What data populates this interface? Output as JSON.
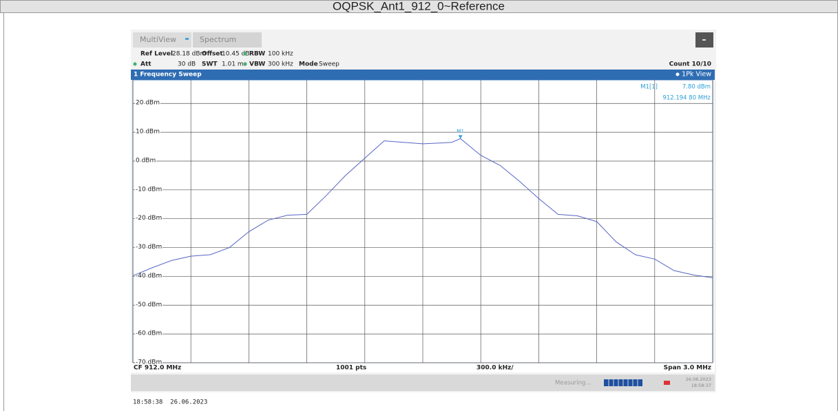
{
  "window_title": "OQPSK_Ant1_912_0~Reference",
  "tabs": [
    "MultiView",
    "Spectrum"
  ],
  "settings_row1": [
    {
      "label": "Ref Level",
      "value": "28.18 dBm"
    },
    {
      "label": "Offset",
      "value": "10.45 dB"
    },
    {
      "label": "RBW",
      "value": "100 kHz"
    }
  ],
  "settings_row2": [
    {
      "label": "Att",
      "value": "30 dB"
    },
    {
      "label": "SWT",
      "value": "1.01 ms"
    },
    {
      "label": "VBW",
      "value": "300 kHz"
    },
    {
      "label": "Mode",
      "value": "Sweep"
    }
  ],
  "count": "Count 10/10",
  "panel_title": "1 Frequency Sweep",
  "footer": {
    "center_freq": "CF 912.0 MHz",
    "points": "1001 pts",
    "per_division": "300.0 kHz/",
    "span": "Span 3.0 MHz"
  },
  "status": {
    "state": "Measuring...",
    "date": "26.06.2023",
    "time": "18:58:37"
  },
  "timestamp": "18:58:38  26.06.2023",
  "chart_data": {
    "type": "line",
    "x": [
      910.5,
      910.6,
      910.7,
      910.8,
      910.9,
      911.0,
      911.1,
      911.2,
      911.3,
      911.4,
      911.5,
      911.6,
      911.7,
      911.8,
      911.9,
      912.0,
      912.1,
      912.15,
      912.1948,
      912.3,
      912.4,
      912.5,
      912.6,
      912.7,
      912.8,
      912.9,
      913.0,
      913.1,
      913.2,
      913.3,
      913.4,
      913.5
    ],
    "series": [
      {
        "name": "1Pk View",
        "color": "#5564c4",
        "values": [
          -39.8,
          -37.0,
          -34.5,
          -33.0,
          -32.5,
          -30.0,
          -24.5,
          -20.5,
          -18.8,
          -18.5,
          -12.0,
          -5.0,
          1.0,
          7.0,
          6.5,
          6.0,
          6.3,
          6.5,
          7.8,
          2.0,
          -1.5,
          -7.0,
          -13.0,
          -18.5,
          -19.0,
          -21.0,
          -28.0,
          -32.5,
          -34.0,
          -38.0,
          -39.5,
          -40.5
        ]
      }
    ],
    "marker": {
      "label": "M1",
      "name": "M1[1]",
      "x": 912.1948,
      "y": 7.8,
      "value_label": "7.80 dBm",
      "x_label": "912.194 80 MHz"
    },
    "xlim": [
      910.5,
      913.5
    ],
    "xticks": [
      910.5,
      910.8,
      911.1,
      911.4,
      911.7,
      912.0,
      912.3,
      912.6,
      912.9,
      913.2,
      913.5
    ],
    "ylim": [
      -70,
      28.18
    ],
    "yticks": [
      {
        "value": 20,
        "label": "20 dBm"
      },
      {
        "value": 10,
        "label": "10 dBm"
      },
      {
        "value": 0,
        "label": "0 dBm"
      },
      {
        "value": -10,
        "label": "-10 dBm"
      },
      {
        "value": -20,
        "label": "-20 dBm"
      },
      {
        "value": -30,
        "label": "-30 dBm"
      },
      {
        "value": -40,
        "label": "-40 dBm"
      },
      {
        "value": -50,
        "label": "-50 dBm"
      },
      {
        "value": -60,
        "label": "-60 dBm"
      },
      {
        "value": -70,
        "label": "-70 dBm"
      }
    ],
    "grid": true
  }
}
